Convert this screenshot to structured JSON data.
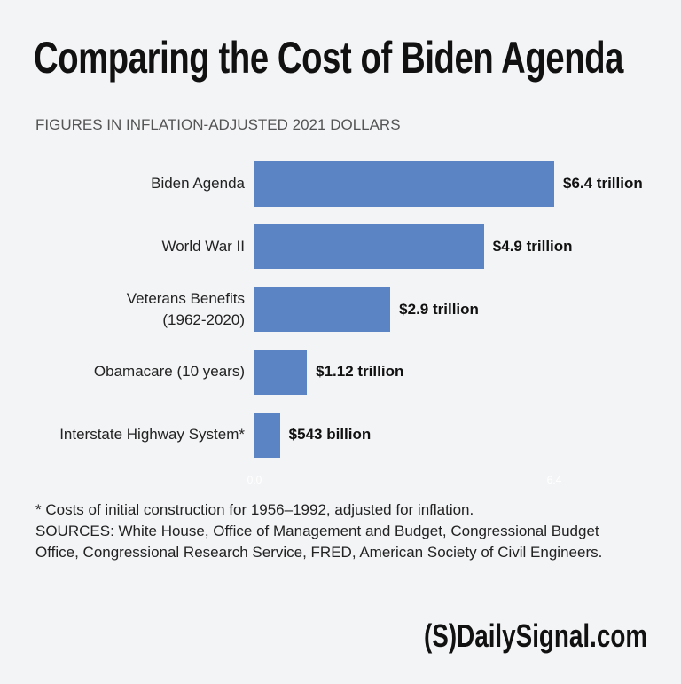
{
  "chart_data": {
    "type": "bar",
    "orientation": "horizontal",
    "title": "Comparing the Cost of Biden Agenda",
    "subtitle": "FIGURES IN INFLATION-ADJUSTED 2021 DOLLARS",
    "categories": [
      "Biden Agenda",
      "World War II",
      "Veterans Benefits\n(1962-2020)",
      "Obamacare (10 years)",
      "Interstate Highway System*"
    ],
    "values": [
      6.4,
      4.9,
      2.9,
      1.12,
      0.543
    ],
    "value_labels": [
      "$6.4 trillion",
      "$4.9 trillion",
      "$2.9 trillion",
      "$1.12 trillion",
      "$543 billion"
    ],
    "color": "#5a84c3",
    "xlim": [
      0,
      6.4
    ],
    "xticks": [
      {
        "value": 0,
        "label": "0.0"
      },
      6.4
    ],
    "grid": false,
    "footnote": "* Costs of initial construction for 1956–1992, adjusted for inflation.",
    "sources": "SOURCES:  White House, Office of Management and Budget, Congressional Budget Office, Congressional Research Service, FRED, American Society of Civil Engineers.",
    "logo_mark": "(S)",
    "logo": "DailySignal.com"
  }
}
